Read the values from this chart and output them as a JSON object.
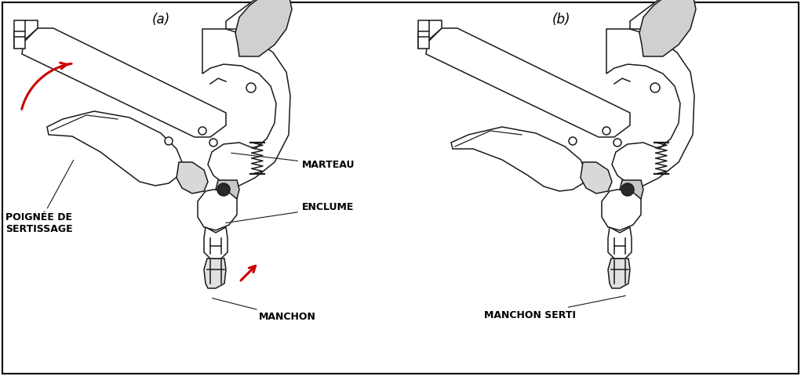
{
  "label_a": "(a)",
  "label_b": "(b)",
  "label_marteau": "MARTEAU",
  "label_enclume": "ENCLUME",
  "label_manchon": "MANCHON",
  "label_manchon_serti": "MANCHON SERTI",
  "label_poignee": "POIGNÉE DE\nSERTISSAGE",
  "bg_color": "#ffffff",
  "line_color": "#1a1a1a",
  "arrow_color": "#cc0000",
  "border_color": "#000000",
  "font_size_label": 9,
  "font_size_ab": 12,
  "fig_width": 10.21,
  "fig_height": 4.8,
  "dpi": 100
}
